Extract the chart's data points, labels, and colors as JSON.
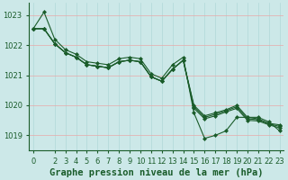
{
  "xlabel": "Graphe pression niveau de la mer (hPa)",
  "background_color": "#cce8e8",
  "line_color": "#1a5c2a",
  "grid_color_h": "#e8a8a8",
  "grid_color_v": "#b0d8d8",
  "ylim": [
    1018.5,
    1023.4
  ],
  "xlim": [
    -0.4,
    23.4
  ],
  "yticks": [
    1019,
    1020,
    1021,
    1022,
    1023
  ],
  "xticks": [
    0,
    2,
    3,
    4,
    5,
    6,
    7,
    8,
    9,
    10,
    11,
    12,
    13,
    14,
    15,
    16,
    17,
    18,
    19,
    20,
    21,
    22,
    23
  ],
  "series": [
    [
      1022.55,
      1023.1,
      1022.2,
      1021.85,
      1021.7,
      1021.45,
      1021.4,
      1021.35,
      1021.55,
      1021.6,
      1021.55,
      1021.05,
      1020.9,
      1021.35,
      1021.6,
      1019.75,
      1018.9,
      1019.0,
      1019.15,
      1019.6,
      1019.6,
      1019.6,
      1019.45,
      1019.15
    ],
    [
      1022.55,
      1022.55,
      1022.05,
      1021.75,
      1021.6,
      1021.35,
      1021.3,
      1021.25,
      1021.45,
      1021.5,
      1021.45,
      1020.95,
      1020.8,
      1021.2,
      1021.5,
      1020.0,
      1019.65,
      1019.75,
      1019.85,
      1020.0,
      1019.6,
      1019.55,
      1019.4,
      1019.35
    ],
    [
      1022.55,
      1022.55,
      1022.05,
      1021.75,
      1021.6,
      1021.35,
      1021.3,
      1021.25,
      1021.45,
      1021.5,
      1021.45,
      1020.95,
      1020.8,
      1021.2,
      1021.5,
      1019.95,
      1019.6,
      1019.7,
      1019.82,
      1019.95,
      1019.55,
      1019.52,
      1019.38,
      1019.3
    ],
    [
      1022.55,
      1022.55,
      1022.05,
      1021.75,
      1021.6,
      1021.35,
      1021.3,
      1021.25,
      1021.45,
      1021.5,
      1021.45,
      1020.95,
      1020.8,
      1021.2,
      1021.5,
      1019.9,
      1019.55,
      1019.65,
      1019.78,
      1019.9,
      1019.5,
      1019.48,
      1019.35,
      1019.25
    ]
  ],
  "marker": "D",
  "marker_size": 2.0,
  "line_width": 0.8,
  "xlabel_fontsize": 7.5,
  "tick_fontsize": 6.0,
  "xlabel_color": "#1a5c2a",
  "tick_color": "#1a5c2a",
  "spine_color": "#1a5c2a"
}
